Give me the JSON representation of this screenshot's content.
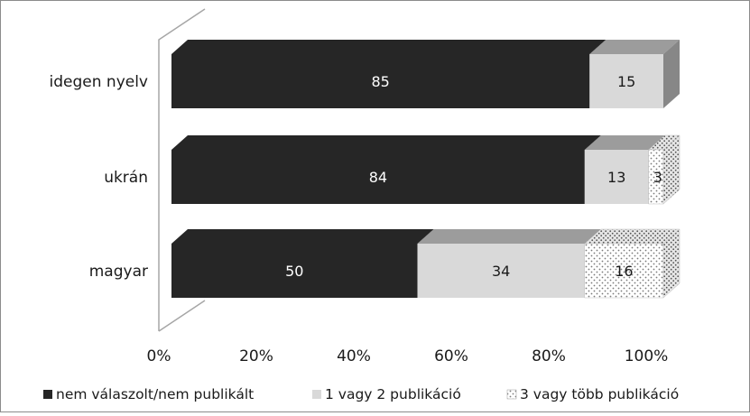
{
  "chart_data": {
    "type": "bar",
    "orientation": "horizontal",
    "stacked": "percent",
    "style": "3d",
    "categories": [
      "idegen nyelv",
      "ukrán",
      "magyar"
    ],
    "series": [
      {
        "name": "nem válaszolt/nem publikált",
        "values": [
          85,
          84,
          50
        ],
        "color": "#262626",
        "pattern": "solid"
      },
      {
        "name": "1 vagy 2 publikáció",
        "values": [
          15,
          13,
          34
        ],
        "color": "#d9d9d9",
        "pattern": "solid"
      },
      {
        "name": "3 vagy több publikáció",
        "values": [
          0,
          3,
          16
        ],
        "color": "#ffffff",
        "pattern": "dotted"
      }
    ],
    "x_ticks": [
      "0%",
      "20%",
      "40%",
      "60%",
      "80%",
      "100%"
    ],
    "xlim": [
      0,
      100
    ],
    "grid": false,
    "legend_position": "bottom"
  }
}
